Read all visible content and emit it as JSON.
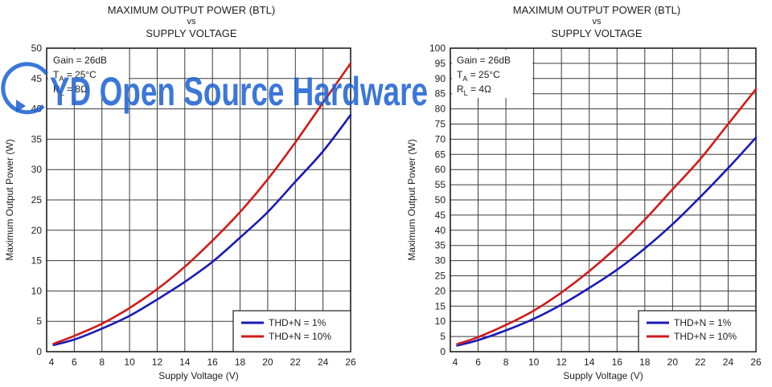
{
  "chart_data": [
    {
      "type": "line",
      "title": "MAXIMUM OUTPUT POWER (BTL)",
      "title_vs": "vs",
      "subtitle": "SUPPLY VOLTAGE",
      "xlabel": "Supply Voltage (V)",
      "ylabel": "Maximum Output Power (W)",
      "xlim": [
        4,
        26
      ],
      "ylim": [
        0,
        50
      ],
      "xticks": [
        4,
        6,
        8,
        10,
        12,
        14,
        16,
        18,
        20,
        22,
        24,
        26
      ],
      "yticks": [
        0,
        5,
        10,
        15,
        20,
        25,
        30,
        35,
        40,
        45,
        50
      ],
      "grid": true,
      "conditions": {
        "gain": "Gain = 26dB",
        "ta_prefix": "T",
        "ta_sub": "A",
        "ta_value": " = 25°C",
        "rl_prefix": "R",
        "rl_sub": "L",
        "rl_value": " = 8Ω"
      },
      "legend_position": "bottom-right",
      "series": [
        {
          "name": "THD+N = 1%",
          "color": "#1a1ab8",
          "x": [
            4.5,
            6,
            8,
            10,
            12,
            14,
            16,
            18,
            20,
            22,
            24,
            26
          ],
          "y": [
            1.1,
            2.0,
            3.8,
            5.9,
            8.6,
            11.5,
            14.8,
            18.8,
            23.0,
            28.0,
            33.0,
            39.0
          ]
        },
        {
          "name": "THD+N = 10%",
          "color": "#d11a1a",
          "x": [
            4.5,
            6,
            8,
            10,
            12,
            14,
            16,
            18,
            20,
            22,
            24,
            26
          ],
          "y": [
            1.3,
            2.6,
            4.6,
            7.2,
            10.3,
            14.0,
            18.3,
            23.0,
            28.4,
            34.5,
            41.0,
            47.5
          ]
        }
      ]
    },
    {
      "type": "line",
      "title": "MAXIMUM OUTPUT POWER (BTL)",
      "title_vs": "vs",
      "subtitle": "SUPPLY VOLTAGE",
      "xlabel": "Supply Voltage (V)",
      "ylabel": "Maximum Output Power (W)",
      "xlim": [
        4,
        26
      ],
      "ylim": [
        0,
        100
      ],
      "xticks": [
        4,
        6,
        8,
        10,
        12,
        14,
        16,
        18,
        20,
        22,
        24,
        26
      ],
      "yticks": [
        0,
        5,
        10,
        15,
        20,
        25,
        30,
        35,
        40,
        45,
        50,
        55,
        60,
        65,
        70,
        75,
        80,
        85,
        90,
        95,
        100
      ],
      "grid": true,
      "conditions": {
        "gain": "Gain = 26dB",
        "ta_prefix": "T",
        "ta_sub": "A",
        "ta_value": " = 25°C",
        "rl_prefix": "R",
        "rl_sub": "L",
        "rl_value": " = 4Ω"
      },
      "legend_position": "bottom-right",
      "series": [
        {
          "name": "THD+N = 1%",
          "color": "#1a1ab8",
          "x": [
            4.5,
            6,
            8,
            10,
            12,
            14,
            16,
            18,
            20,
            22,
            24,
            26
          ],
          "y": [
            2.0,
            3.8,
            7.0,
            10.8,
            15.5,
            21.0,
            27.0,
            34.0,
            42.0,
            51.0,
            60.5,
            70.5
          ]
        },
        {
          "name": "THD+N = 10%",
          "color": "#d11a1a",
          "x": [
            4.5,
            6,
            8,
            10,
            12,
            14,
            16,
            18,
            20,
            22,
            24,
            26
          ],
          "y": [
            2.5,
            4.8,
            8.8,
            13.5,
            19.5,
            26.5,
            34.5,
            43.5,
            53.5,
            63.5,
            75.0,
            86.5
          ]
        }
      ]
    }
  ],
  "watermark": {
    "text": "YD Open Source Hardware",
    "color": "#1a5fd1"
  }
}
